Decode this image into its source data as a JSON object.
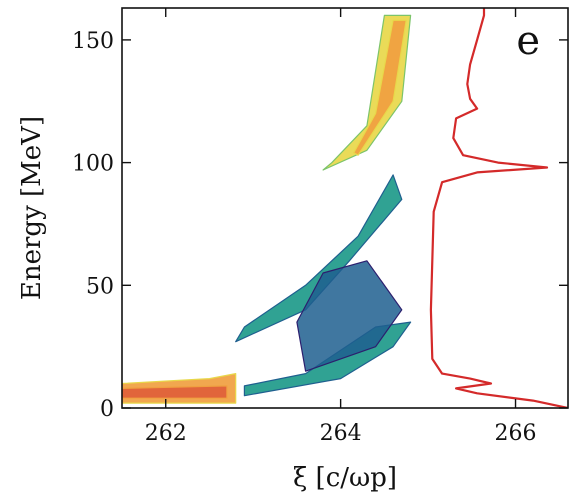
{
  "chart_data": {
    "type": "heatmap",
    "panel_label": "e",
    "xlabel": "ξ [c/ωp]",
    "ylabel": "Energy [MeV]",
    "xlim": [
      261.5,
      266.6
    ],
    "ylim": [
      0,
      163
    ],
    "x_ticks": [
      262,
      264,
      266
    ],
    "y_ticks": [
      0,
      50,
      100,
      150
    ],
    "colormap": [
      "#2c1f6e",
      "#1f5f8f",
      "#1e9a8a",
      "#7cc46a",
      "#e8d84a",
      "#f0a040",
      "#e0603a"
    ],
    "regions": [
      {
        "name": "low-energy beam",
        "points": [
          [
            261.5,
            2
          ],
          [
            262.8,
            2
          ],
          [
            262.8,
            14
          ],
          [
            262.5,
            12
          ],
          [
            261.5,
            10
          ]
        ],
        "level": 5
      },
      {
        "name": "low-energy beam core",
        "points": [
          [
            261.5,
            4
          ],
          [
            262.7,
            4
          ],
          [
            262.7,
            9
          ],
          [
            261.5,
            8
          ]
        ],
        "level": 6
      },
      {
        "name": "lower spiral arm",
        "points": [
          [
            262.9,
            5
          ],
          [
            264.0,
            12
          ],
          [
            264.6,
            25
          ],
          [
            264.8,
            35
          ],
          [
            264.4,
            33
          ],
          [
            263.6,
            14
          ],
          [
            262.9,
            9
          ]
        ],
        "level": 2
      },
      {
        "name": "middle arm",
        "points": [
          [
            262.8,
            27
          ],
          [
            263.6,
            40
          ],
          [
            264.1,
            60
          ],
          [
            264.7,
            85
          ],
          [
            264.6,
            95
          ],
          [
            264.2,
            70
          ],
          [
            263.6,
            50
          ],
          [
            262.9,
            33
          ]
        ],
        "level": 2
      },
      {
        "name": "diffuse cloud",
        "points": [
          [
            263.6,
            15
          ],
          [
            264.4,
            25
          ],
          [
            264.7,
            40
          ],
          [
            264.3,
            60
          ],
          [
            263.8,
            55
          ],
          [
            263.5,
            35
          ]
        ],
        "level": 1
      },
      {
        "name": "upper branch",
        "points": [
          [
            263.8,
            97
          ],
          [
            264.3,
            105
          ],
          [
            264.7,
            125
          ],
          [
            264.8,
            160
          ],
          [
            264.5,
            160
          ],
          [
            264.3,
            115
          ],
          [
            263.9,
            100
          ]
        ],
        "level": 4
      },
      {
        "name": "upper branch core",
        "points": [
          [
            264.2,
            103
          ],
          [
            264.6,
            125
          ],
          [
            264.75,
            158
          ],
          [
            264.6,
            158
          ],
          [
            264.4,
            120
          ],
          [
            264.15,
            104
          ]
        ],
        "level": 5
      }
    ],
    "lineout": {
      "color": "#d42a2a",
      "x_range": [
        265.0,
        266.6
      ],
      "energy": [
        0,
        3,
        6,
        8,
        10,
        12,
        14,
        20,
        40,
        60,
        80,
        92,
        96,
        98,
        100,
        103,
        110,
        118,
        122,
        126,
        132,
        140,
        150,
        160,
        163
      ],
      "signal": [
        1.0,
        0.75,
        0.35,
        0.2,
        0.45,
        0.3,
        0.1,
        0.03,
        0.02,
        0.03,
        0.04,
        0.1,
        0.35,
        0.85,
        0.5,
        0.25,
        0.18,
        0.2,
        0.35,
        0.3,
        0.28,
        0.3,
        0.35,
        0.4,
        0.4
      ]
    }
  }
}
